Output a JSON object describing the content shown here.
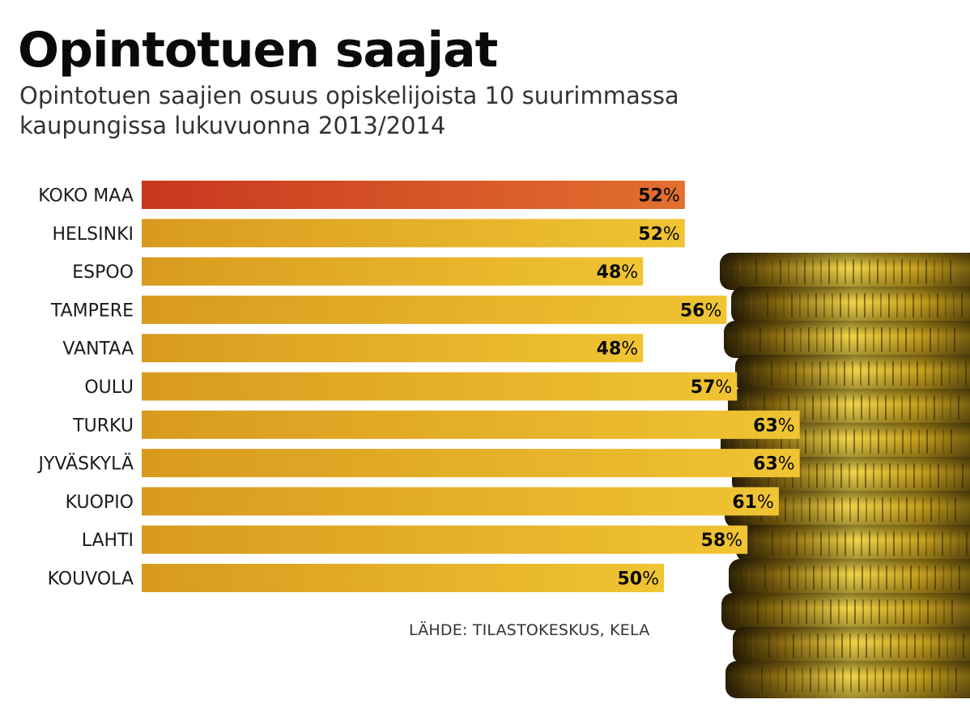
{
  "title": "Opintotuen saajat",
  "subtitle": "Opintotuen saajien osuus opiskelijoista 10 suurimmassa kaupungissa lukuvuonna 2013/2014",
  "source": "LÄHDE: TILASTOKESKUS, KELA",
  "colors": {
    "highlight_start": "#c8371f",
    "highlight_end": "#e2702f",
    "bar_start": "#d89a1e",
    "bar_end": "#f0c433",
    "coin_dark": "#2e2305",
    "coin_mid": "#a07c12",
    "coin_light": "#f2d64a"
  },
  "decoration": "coins-image",
  "chart_data": {
    "type": "bar",
    "orientation": "horizontal",
    "title": "Opintotuen saajat",
    "subtitle": "Opintotuen saajien osuus opiskelijoista 10 suurimmassa kaupungissa lukuvuonna 2013/2014",
    "categories": [
      "KOKO MAA",
      "HELSINKI",
      "ESPOO",
      "TAMPERE",
      "VANTAA",
      "OULU",
      "TURKU",
      "JYVÄSKYLÄ",
      "KUOPIO",
      "LAHTI",
      "KOUVOLA"
    ],
    "values": [
      52,
      52,
      48,
      56,
      48,
      57,
      63,
      63,
      61,
      58,
      50
    ],
    "value_suffix": "%",
    "highlight_index": 0,
    "grid": false,
    "legend": "none"
  }
}
